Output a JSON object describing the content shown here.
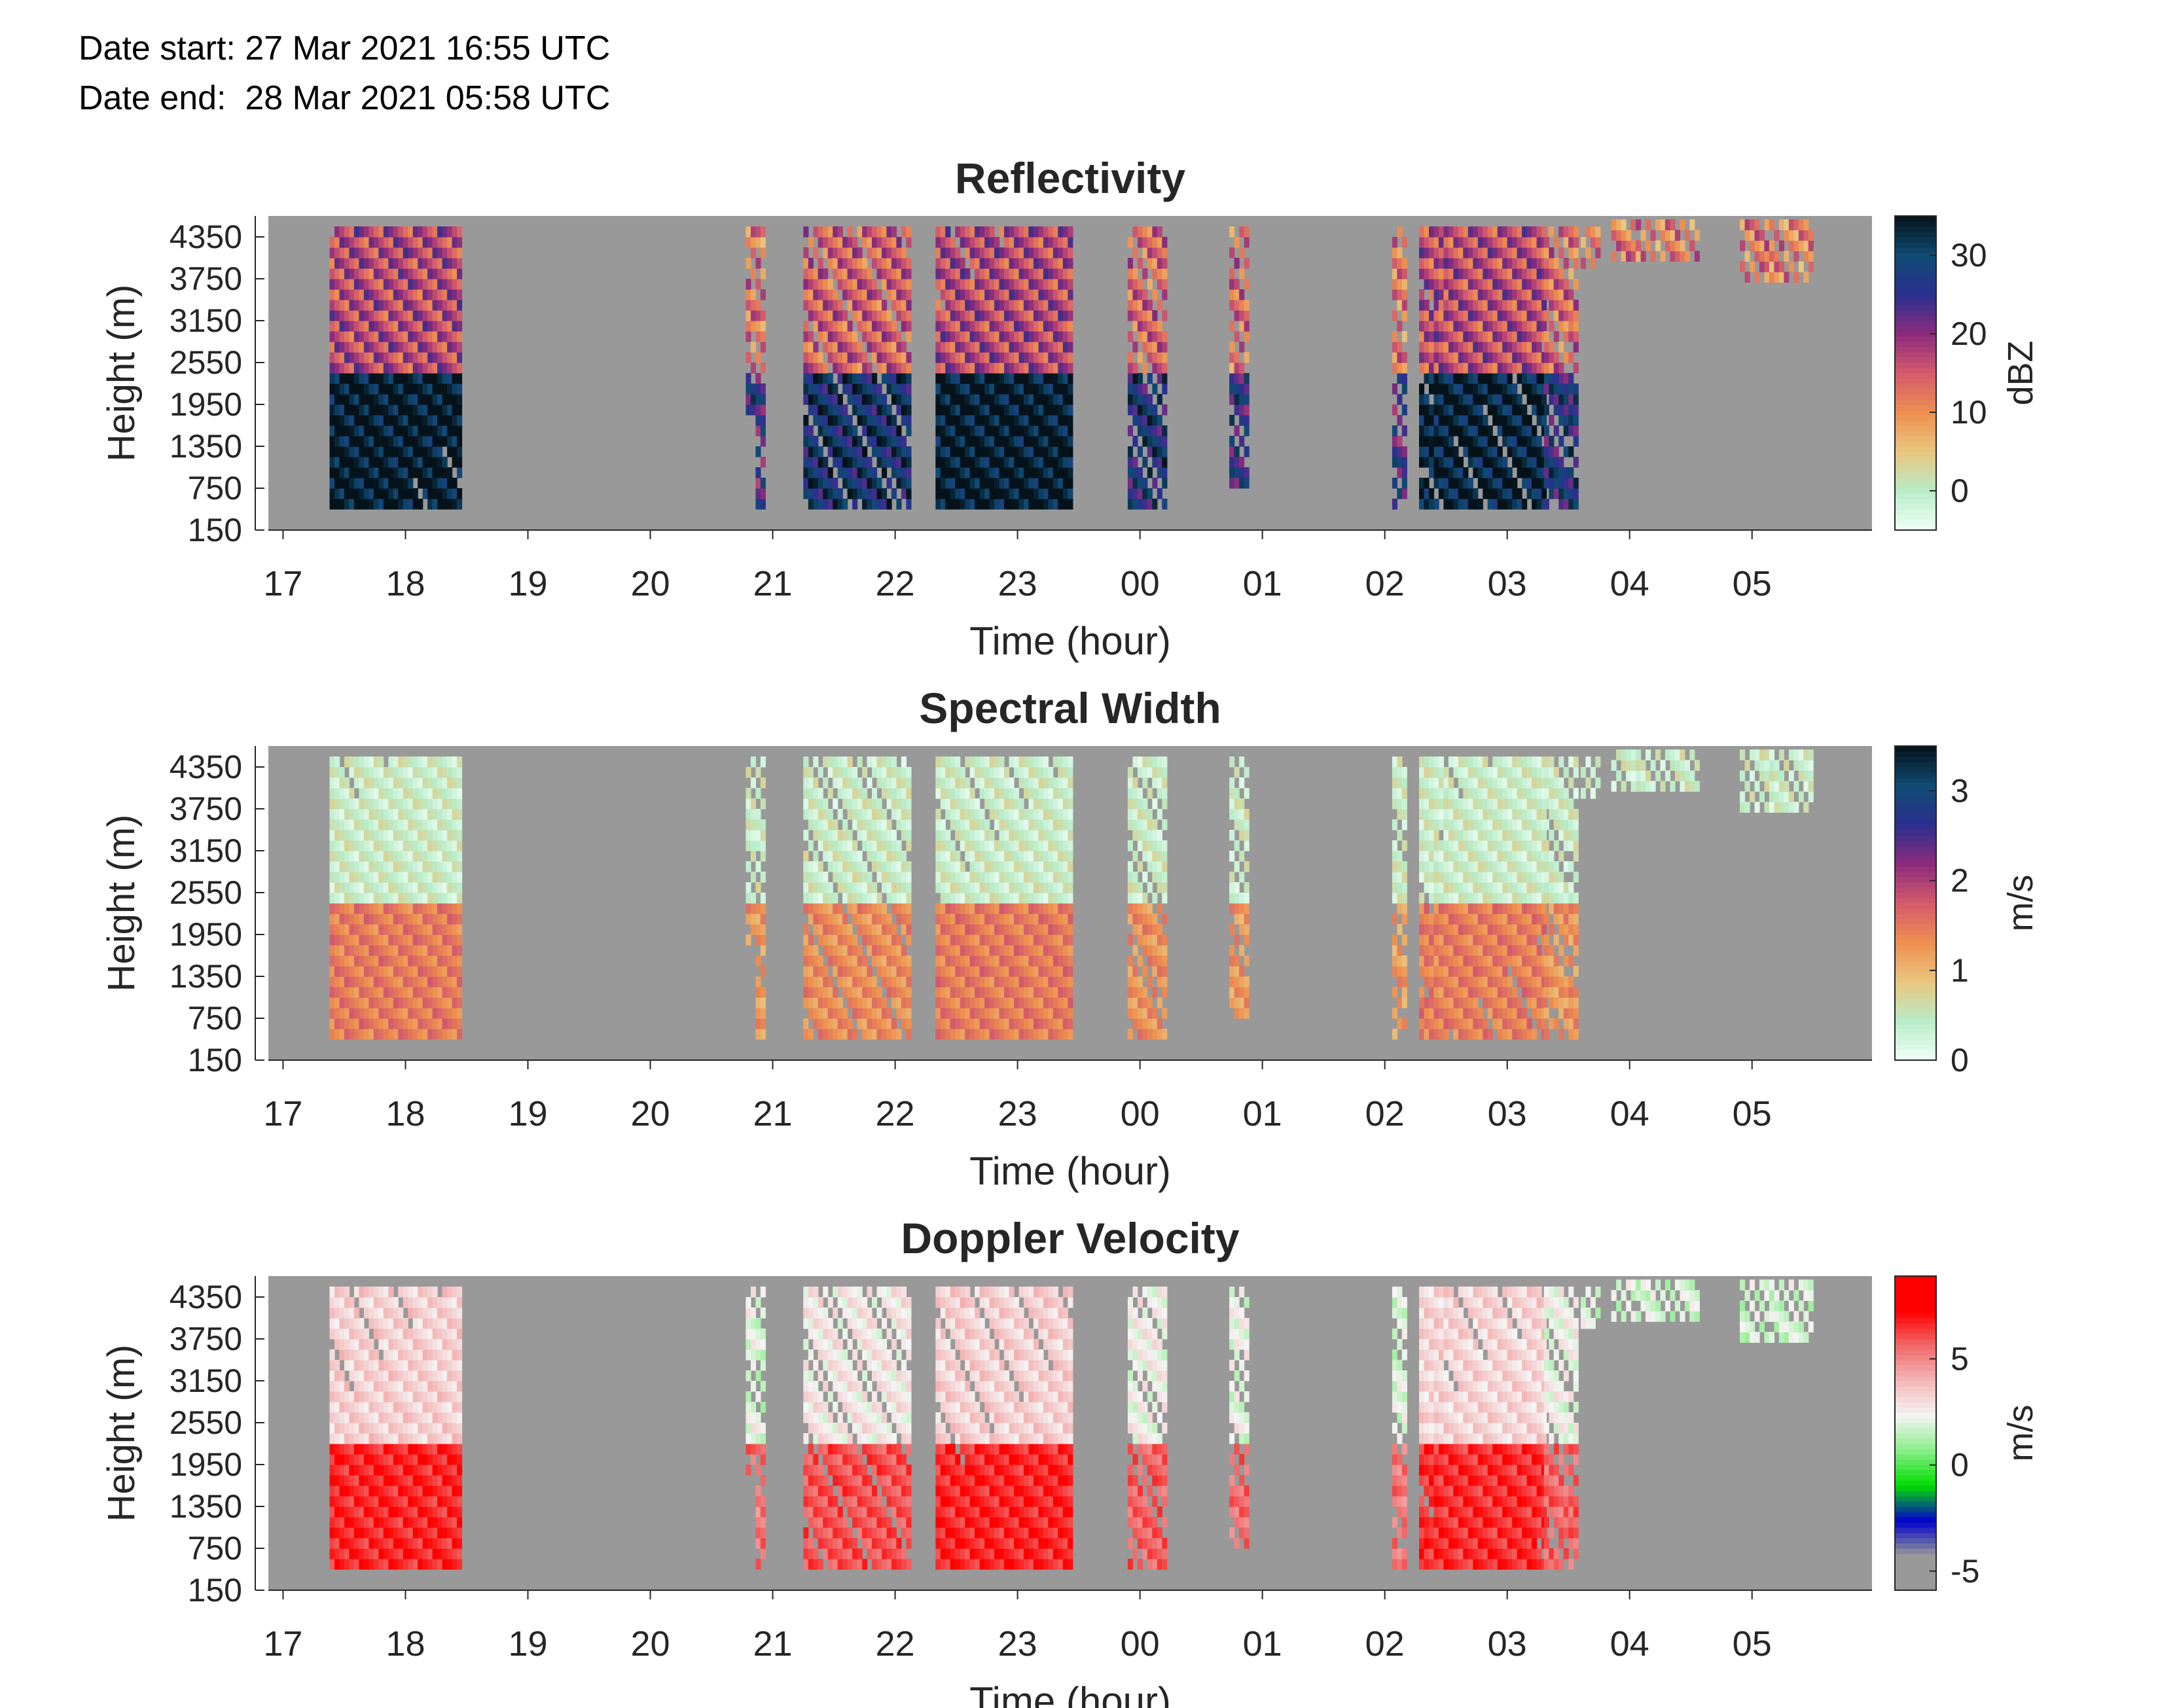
{
  "header": {
    "date_start": "Date start: 27 Mar 2021 16:55 UTC",
    "date_end": "Date end:  28 Mar 2021 05:58 UTC"
  },
  "chart_data": [
    {
      "type": "heatmap",
      "title": "Reflectivity",
      "xlabel": "Time (hour)",
      "ylabel": "Height (m)",
      "x_tick_labels": [
        "17",
        "18",
        "19",
        "20",
        "21",
        "22",
        "23",
        "00",
        "01",
        "02",
        "03",
        "04",
        "05"
      ],
      "x_ticks_hours_since_17": [
        0,
        1,
        2,
        3,
        4,
        5,
        6,
        7,
        8,
        9,
        10,
        11,
        12
      ],
      "xlim_hours_since_17": [
        -0.12,
        12.98
      ],
      "y_ticks": [
        150,
        750,
        1350,
        1950,
        2550,
        3150,
        3750,
        4350
      ],
      "ylim": [
        150,
        4650
      ],
      "colorbar": {
        "label": "dBZ",
        "ticks": [
          0,
          10,
          20,
          30
        ],
        "range": [
          -5,
          35
        ],
        "colors": [
          "#f0fff8",
          "#b9ecc8",
          "#e9c77f",
          "#ee8f4f",
          "#d45b6c",
          "#8c2b7c",
          "#2b2f8f",
          "#0f4b73",
          "#05121a"
        ]
      },
      "background_color": "#999999",
      "grid": false
    },
    {
      "type": "heatmap",
      "title": "Spectral Width",
      "xlabel": "Time (hour)",
      "ylabel": "Height (m)",
      "x_tick_labels": [
        "17",
        "18",
        "19",
        "20",
        "21",
        "22",
        "23",
        "00",
        "01",
        "02",
        "03",
        "04",
        "05"
      ],
      "x_ticks_hours_since_17": [
        0,
        1,
        2,
        3,
        4,
        5,
        6,
        7,
        8,
        9,
        10,
        11,
        12
      ],
      "xlim_hours_since_17": [
        -0.12,
        12.98
      ],
      "y_ticks": [
        150,
        750,
        1350,
        1950,
        2550,
        3150,
        3750,
        4350
      ],
      "ylim": [
        150,
        4650
      ],
      "colorbar": {
        "label": "m/s",
        "ticks": [
          0,
          1,
          2,
          3
        ],
        "range": [
          0,
          3.5
        ],
        "colors": [
          "#f0fff8",
          "#b9ecc8",
          "#e9c77f",
          "#ee8f4f",
          "#d45b6c",
          "#8c2b7c",
          "#2b2f8f",
          "#0f4b73",
          "#05121a"
        ]
      },
      "background_color": "#999999",
      "grid": false
    },
    {
      "type": "heatmap",
      "title": "Doppler Velocity",
      "xlabel": "Time (hour)",
      "ylabel": "Height (m)",
      "x_tick_labels": [
        "17",
        "18",
        "19",
        "20",
        "21",
        "22",
        "23",
        "00",
        "01",
        "02",
        "03",
        "04",
        "05"
      ],
      "x_ticks_hours_since_17": [
        0,
        1,
        2,
        3,
        4,
        5,
        6,
        7,
        8,
        9,
        10,
        11,
        12
      ],
      "xlim_hours_since_17": [
        -0.12,
        12.98
      ],
      "y_ticks": [
        150,
        750,
        1350,
        1950,
        2550,
        3150,
        3750,
        4350
      ],
      "ylim": [
        150,
        4650
      ],
      "colorbar": {
        "label": "m/s",
        "ticks": [
          -5,
          0,
          5
        ],
        "range": [
          -5.9,
          8.9
        ],
        "colors": [
          "#999999",
          "#999999",
          "#0000cc",
          "#00dd00",
          "#88ee88",
          "#f5f5f5",
          "#f4b8b8",
          "#f06a6a",
          "#ff0000",
          "#ff0000"
        ]
      },
      "background_color": "#999999",
      "grid": false
    }
  ],
  "echo_segments_hours_since_17": [
    {
      "start": 0.38,
      "end": 1.46,
      "strength": 1.0,
      "low_cut_m": 450
    },
    {
      "start": 3.78,
      "end": 3.83,
      "strength": 0.5,
      "low_cut_m": 1800
    },
    {
      "start": 3.86,
      "end": 3.93,
      "strength": 0.4,
      "low_cut_m": 450
    },
    {
      "start": 4.25,
      "end": 5.13,
      "strength": 0.7,
      "low_cut_m": 450
    },
    {
      "start": 5.33,
      "end": 6.45,
      "strength": 1.0,
      "low_cut_m": 450
    },
    {
      "start": 6.9,
      "end": 7.22,
      "strength": 0.6,
      "low_cut_m": 450
    },
    {
      "start": 7.73,
      "end": 7.88,
      "strength": 0.5,
      "low_cut_m": 750
    },
    {
      "start": 9.06,
      "end": 9.15,
      "strength": 0.4,
      "low_cut_m": 450
    },
    {
      "start": 9.28,
      "end": 10.28,
      "strength": 0.95,
      "low_cut_m": 450
    },
    {
      "start": 10.3,
      "end": 10.57,
      "strength": 0.55,
      "low_cut_m": 450
    },
    {
      "start": 10.6,
      "end": 10.72,
      "strength": 0.4,
      "low_cut_m": 3900
    },
    {
      "start": 10.85,
      "end": 11.55,
      "strength": 0.35,
      "low_cut_m": 4000
    },
    {
      "start": 11.9,
      "end": 12.48,
      "strength": 0.35,
      "low_cut_m": 3700
    }
  ]
}
